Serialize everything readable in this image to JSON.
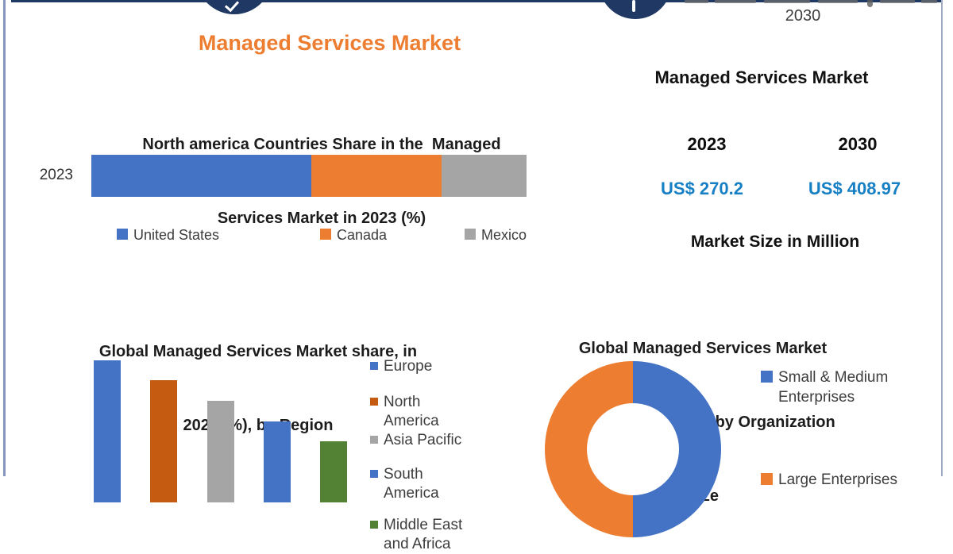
{
  "page": {
    "background": "#ffffff",
    "frame_border_color": "#8496ba",
    "top_line_color": "#1f3864",
    "badge_color": "#1f3864"
  },
  "header": {
    "top_right_year": "2030",
    "main_title": "Managed Services Market",
    "main_title_color": "#ED7D31"
  },
  "right_panel": {
    "title": "Managed Services Market",
    "years": [
      "2023",
      "2030"
    ],
    "values": [
      "US$ 270.2",
      "US$ 408.97"
    ],
    "value_color": "#1780C4",
    "caption": "Market Size in Million"
  },
  "chart_data": [
    {
      "type": "bar",
      "subtype": "horizontal-stacked",
      "title": "North america Countries Share in the  Managed Services Market in 2023 (%)",
      "title_lines": [
        "North america Countries Share in the  Managed",
        "Services Market in 2023 (%)"
      ],
      "categories": [
        "2023"
      ],
      "unit": "%",
      "legend_position": "bottom",
      "values_estimated_from_pixels": true,
      "series": [
        {
          "name": "United States",
          "value": 50.5,
          "color": "#4472C4"
        },
        {
          "name": "Canada",
          "value": 30.0,
          "color": "#ED7D31"
        },
        {
          "name": "Mexico",
          "value": 19.5,
          "color": "#A5A5A5"
        }
      ]
    },
    {
      "type": "bar",
      "subtype": "vertical-columns",
      "title": "Global Managed Services Market share, in 2023 (%), by Region",
      "title_lines": [
        "Global Managed Services Market share, in",
        "2023 (%), by Region"
      ],
      "categories": [
        "Europe",
        "North America",
        "Asia Pacific",
        "South America",
        "Middle East and Africa"
      ],
      "values": [
        28,
        24,
        20,
        16,
        12
      ],
      "colors": [
        "#4472C4",
        "#C55A11",
        "#A5A5A5",
        "#4472C4",
        "#548235"
      ],
      "unit": "%",
      "legend_position": "right",
      "values_estimated_from_pixels": true,
      "bottom_cropped": true
    },
    {
      "type": "pie",
      "subtype": "donut",
      "title": "Global Managed Services Market Share, in 2023 (%), by Organization Size",
      "title_lines": [
        "Global Managed Services Market",
        "Share, in 2023 (%), by Organization",
        "Size"
      ],
      "labels": [
        "Small & Medium Enterprises",
        "Large Enterprises"
      ],
      "values": [
        50,
        50
      ],
      "colors": [
        "#4472C4",
        "#ED7D31"
      ],
      "unit": "%",
      "legend_position": "right",
      "values_estimated_from_pixels": true,
      "bottom_cropped": true
    }
  ]
}
